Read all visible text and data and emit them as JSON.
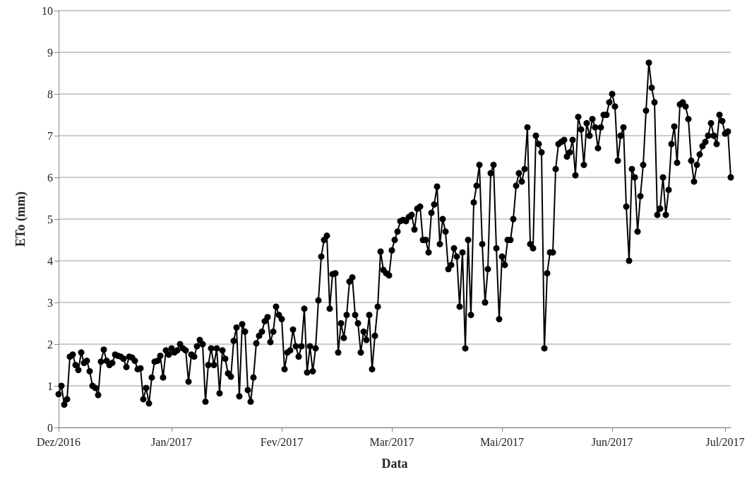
{
  "chart_data": {
    "type": "line",
    "xlabel": "Data",
    "ylabel": "ETo (mm)",
    "ylim": [
      0,
      10
    ],
    "categories": [
      "Dez/2016",
      null,
      null,
      null,
      null,
      null,
      null,
      null,
      null,
      null,
      null,
      null,
      null,
      null,
      null,
      null,
      null,
      null,
      null,
      null,
      null,
      null,
      null,
      null,
      null,
      null,
      null,
      null,
      null,
      null,
      null,
      null,
      null,
      null,
      null,
      null,
      null,
      null,
      null,
      null,
      "Jan/2017",
      null,
      null,
      null,
      null,
      null,
      null,
      null,
      null,
      null,
      null,
      null,
      null,
      null,
      null,
      null,
      null,
      null,
      null,
      null,
      null,
      null,
      null,
      null,
      null,
      null,
      null,
      null,
      null,
      null,
      null,
      null,
      null,
      null,
      null,
      null,
      null,
      null,
      null,
      "Fev/2017",
      null,
      null,
      null,
      null,
      null,
      null,
      null,
      null,
      null,
      null,
      null,
      null,
      null,
      null,
      null,
      null,
      null,
      null,
      null,
      null,
      null,
      null,
      null,
      null,
      null,
      null,
      null,
      null,
      null,
      null,
      null,
      null,
      null,
      null,
      null,
      null,
      null,
      null,
      "Mar/2017",
      null,
      null,
      null,
      null,
      null,
      null,
      null,
      null,
      null,
      null,
      null,
      null,
      null,
      null,
      null,
      null,
      null,
      null,
      null,
      null,
      null,
      null,
      null,
      null,
      null,
      null,
      null,
      null,
      null,
      null,
      null,
      null,
      null,
      null,
      null,
      null,
      null,
      null,
      "Mai/2017",
      null,
      null,
      null,
      null,
      null,
      null,
      null,
      null,
      null,
      null,
      null,
      null,
      null,
      null,
      null,
      null,
      null,
      null,
      null,
      null,
      null,
      null,
      null,
      null,
      null,
      null,
      null,
      null,
      null,
      null,
      null,
      null,
      null,
      null,
      null,
      null,
      null,
      null,
      "Jun/2017",
      null,
      null,
      null,
      null,
      null,
      null,
      null,
      null,
      null,
      null,
      null,
      null,
      null,
      null,
      null,
      null,
      null,
      null,
      null,
      null,
      null,
      null,
      null,
      null,
      null,
      null,
      null,
      null,
      null,
      null,
      null,
      null,
      null,
      null,
      null,
      null,
      null,
      null,
      null,
      "Jul/2017",
      null,
      null
    ],
    "yticks": [
      0,
      1,
      2,
      3,
      4,
      5,
      6,
      7,
      8,
      9,
      10
    ],
    "grid": "y",
    "marker": "circle",
    "line_style": "solid",
    "series": [
      {
        "color": "#000000",
        "values": [
          0.8,
          1.0,
          0.55,
          0.68,
          1.7,
          1.75,
          1.5,
          1.38,
          1.8,
          1.55,
          1.6,
          1.35,
          1.0,
          0.95,
          0.78,
          1.58,
          1.87,
          1.6,
          1.5,
          1.55,
          1.75,
          1.72,
          1.7,
          1.65,
          1.45,
          1.7,
          1.68,
          1.6,
          1.4,
          1.42,
          0.68,
          0.95,
          0.58,
          1.2,
          1.58,
          1.6,
          1.72,
          1.2,
          1.85,
          1.75,
          1.9,
          1.8,
          1.85,
          2.0,
          1.9,
          1.85,
          1.1,
          1.75,
          1.7,
          1.95,
          2.1,
          2.0,
          0.62,
          1.5,
          1.9,
          1.5,
          1.9,
          0.82,
          1.85,
          1.65,
          1.3,
          1.22,
          2.08,
          2.4,
          0.75,
          2.48,
          2.3,
          0.9,
          0.62,
          1.2,
          2.02,
          2.2,
          2.3,
          2.55,
          2.65,
          2.05,
          2.3,
          2.9,
          2.7,
          2.6,
          1.4,
          1.8,
          1.85,
          2.35,
          1.95,
          1.7,
          1.95,
          2.85,
          1.32,
          1.95,
          1.35,
          1.9,
          3.05,
          4.1,
          4.5,
          4.6,
          2.85,
          3.68,
          3.7,
          1.8,
          2.5,
          2.15,
          2.7,
          3.5,
          3.6,
          2.7,
          2.5,
          1.8,
          2.3,
          2.1,
          2.7,
          1.4,
          2.2,
          2.9,
          4.22,
          3.78,
          3.7,
          3.65,
          4.25,
          4.5,
          4.7,
          4.95,
          4.98,
          4.95,
          5.05,
          5.1,
          4.75,
          5.25,
          5.3,
          4.5,
          4.5,
          4.2,
          5.15,
          5.35,
          5.78,
          4.4,
          5.0,
          4.7,
          3.8,
          3.9,
          4.3,
          4.1,
          2.9,
          4.2,
          1.9,
          4.5,
          2.7,
          5.4,
          5.8,
          6.3,
          4.4,
          3.0,
          3.8,
          6.1,
          6.3,
          4.3,
          2.6,
          4.1,
          3.9,
          4.5,
          4.5,
          5.0,
          5.8,
          6.1,
          5.9,
          6.2,
          7.2,
          4.4,
          4.3,
          7.0,
          6.8,
          6.6,
          1.9,
          3.7,
          4.2,
          4.2,
          6.2,
          6.8,
          6.85,
          6.9,
          6.5,
          6.6,
          6.9,
          6.05,
          7.45,
          7.15,
          6.3,
          7.3,
          7.0,
          7.4,
          7.2,
          6.7,
          7.2,
          7.5,
          7.5,
          7.8,
          8.0,
          7.7,
          6.4,
          7.0,
          7.2,
          5.3,
          4.0,
          6.2,
          6.0,
          4.7,
          5.55,
          6.3,
          7.6,
          8.75,
          8.15,
          7.8,
          5.1,
          5.25,
          6.0,
          5.1,
          5.7,
          6.8,
          7.22,
          6.35,
          7.75,
          7.8,
          7.7,
          7.4,
          6.4,
          5.9,
          6.3,
          6.55,
          6.75,
          6.85,
          7.0,
          7.3,
          7.0,
          6.8,
          7.5,
          7.35,
          7.05,
          7.1,
          6.0
        ]
      }
    ]
  }
}
